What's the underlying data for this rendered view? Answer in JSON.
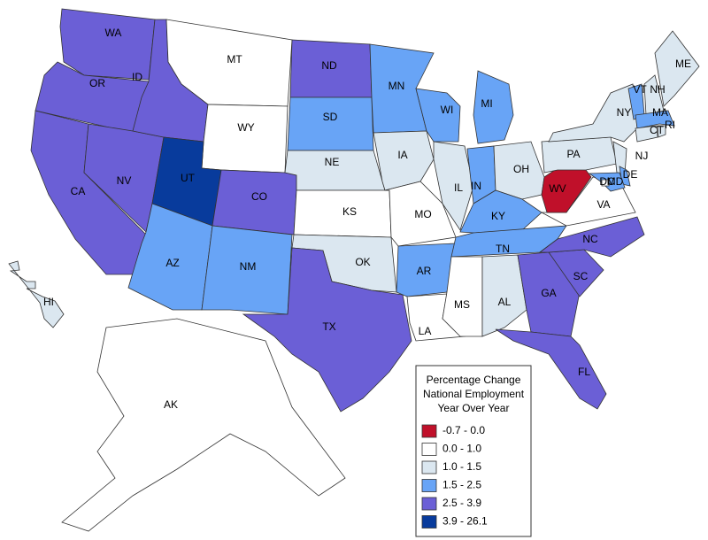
{
  "map": {
    "legend": {
      "title_lines": [
        "Percentage Change",
        "National Employment",
        "Year Over Year"
      ],
      "classes": [
        {
          "label": "-0.7 - 0.0",
          "color": "#c0102a"
        },
        {
          "label": "0.0 - 1.0",
          "color": "#ffffff"
        },
        {
          "label": "1.0 - 1.5",
          "color": "#dbe7f0"
        },
        {
          "label": "1.5 - 2.5",
          "color": "#68a4f6"
        },
        {
          "label": "2.5 - 3.9",
          "color": "#6b5fd6"
        },
        {
          "label": "3.9 - 26.1",
          "color": "#083b9c"
        }
      ]
    },
    "states": [
      {
        "label": "WA",
        "color": "#6b5fd6"
      },
      {
        "label": "OR",
        "color": "#6b5fd6"
      },
      {
        "label": "CA",
        "color": "#6b5fd6"
      },
      {
        "label": "NV",
        "color": "#6b5fd6"
      },
      {
        "label": "ID",
        "color": "#6b5fd6"
      },
      {
        "label": "MT",
        "color": "#ffffff"
      },
      {
        "label": "WY",
        "color": "#ffffff"
      },
      {
        "label": "UT",
        "color": "#083b9c"
      },
      {
        "label": "CO",
        "color": "#6b5fd6"
      },
      {
        "label": "AZ",
        "color": "#68a4f6"
      },
      {
        "label": "NM",
        "color": "#68a4f6"
      },
      {
        "label": "ND",
        "color": "#6b5fd6"
      },
      {
        "label": "SD",
        "color": "#68a4f6"
      },
      {
        "label": "NE",
        "color": "#dbe7f0"
      },
      {
        "label": "KS",
        "color": "#ffffff"
      },
      {
        "label": "OK",
        "color": "#dbe7f0"
      },
      {
        "label": "TX",
        "color": "#6b5fd6"
      },
      {
        "label": "MN",
        "color": "#68a4f6"
      },
      {
        "label": "IA",
        "color": "#dbe7f0"
      },
      {
        "label": "MO",
        "color": "#ffffff"
      },
      {
        "label": "AR",
        "color": "#68a4f6"
      },
      {
        "label": "LA",
        "color": "#ffffff"
      },
      {
        "label": "WI",
        "color": "#68a4f6"
      },
      {
        "label": "IL",
        "color": "#dbe7f0"
      },
      {
        "label": "MI",
        "color": "#68a4f6"
      },
      {
        "label": "IN",
        "color": "#68a4f6"
      },
      {
        "label": "OH",
        "color": "#dbe7f0"
      },
      {
        "label": "KY",
        "color": "#68a4f6"
      },
      {
        "label": "TN",
        "color": "#68a4f6"
      },
      {
        "label": "MS",
        "color": "#ffffff"
      },
      {
        "label": "AL",
        "color": "#dbe7f0"
      },
      {
        "label": "GA",
        "color": "#6b5fd6"
      },
      {
        "label": "FL",
        "color": "#6b5fd6"
      },
      {
        "label": "SC",
        "color": "#6b5fd6"
      },
      {
        "label": "NC",
        "color": "#6b5fd6"
      },
      {
        "label": "VA",
        "color": "#ffffff"
      },
      {
        "label": "WV",
        "color": "#c0102a"
      },
      {
        "label": "PA",
        "color": "#dbe7f0"
      },
      {
        "label": "NY",
        "color": "#dbe7f0"
      },
      {
        "label": "NJ",
        "color": "#dbe7f0"
      },
      {
        "label": "DE",
        "color": "#68a4f6"
      },
      {
        "label": "MD",
        "color": "#68a4f6"
      },
      {
        "label": "DC",
        "color": "#ffffff"
      },
      {
        "label": "VT",
        "color": "#68a4f6"
      },
      {
        "label": "NH",
        "color": "#dbe7f0"
      },
      {
        "label": "ME",
        "color": "#dbe7f0"
      },
      {
        "label": "MA",
        "color": "#68a4f6"
      },
      {
        "label": "CT",
        "color": "#dbe7f0"
      },
      {
        "label": "RI",
        "color": "#dbe7f0"
      },
      {
        "label": "AK",
        "color": "#ffffff"
      },
      {
        "label": "HI",
        "color": "#dbe7f0"
      }
    ]
  }
}
